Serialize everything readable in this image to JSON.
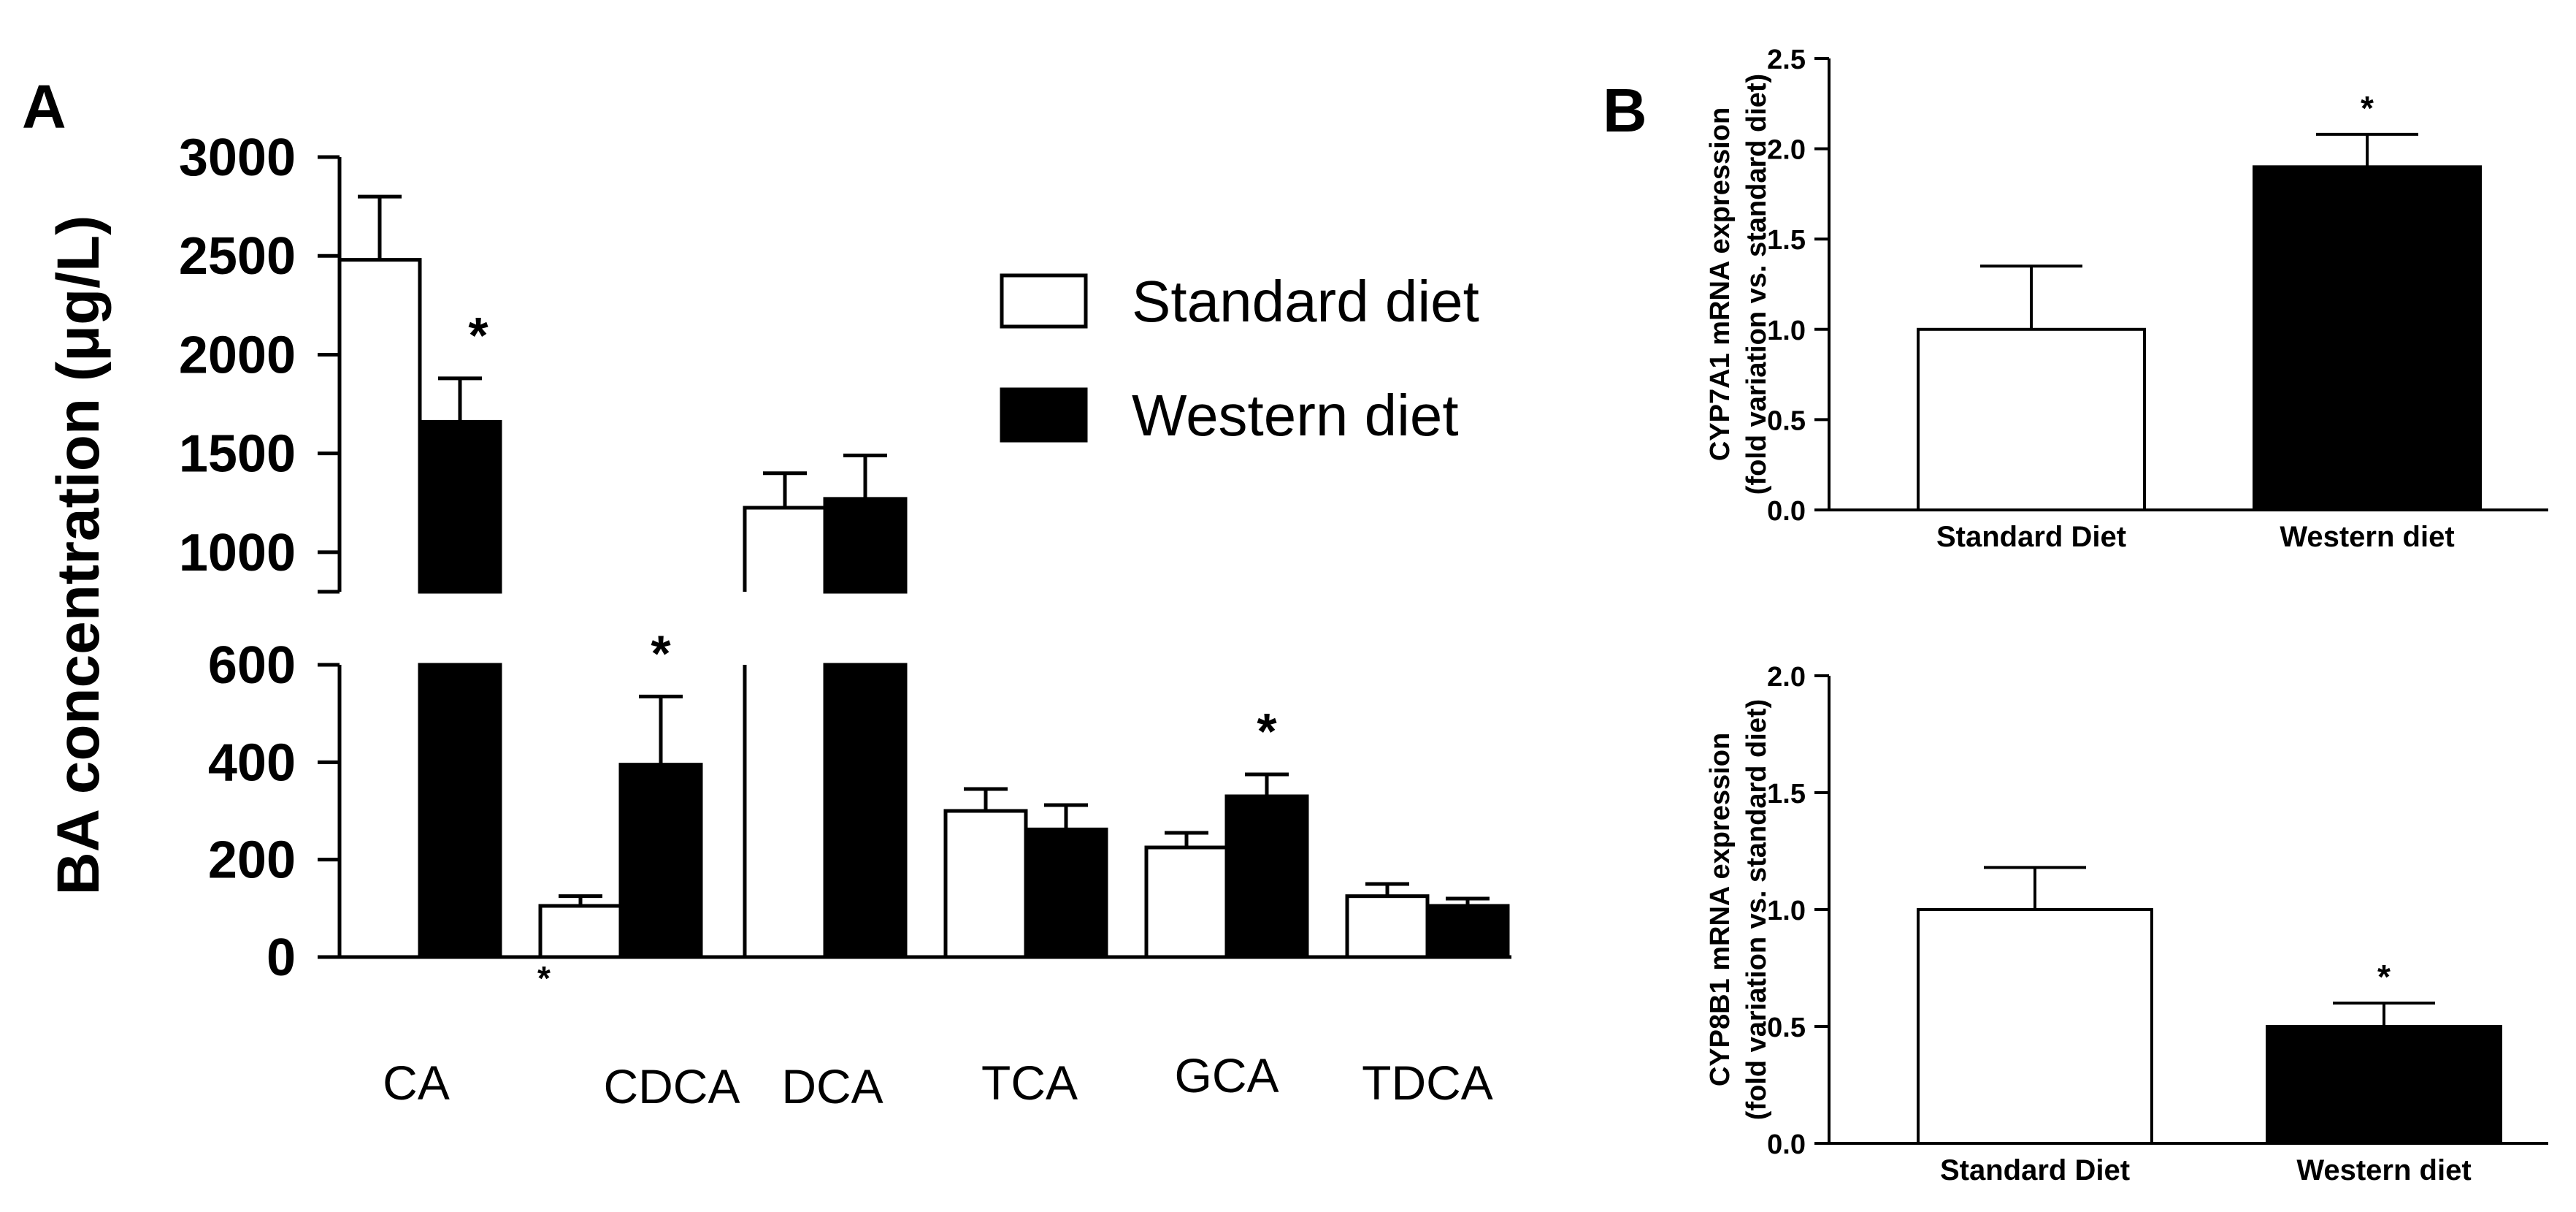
{
  "panels": {
    "a": "A",
    "b": "B"
  },
  "colors": {
    "standard": "#ffffff",
    "western": "#000000",
    "stroke": "#000000"
  },
  "chart_data": [
    {
      "id": "A",
      "type": "bar",
      "title": "",
      "xlabel": "",
      "ylabel": "BA concentration (μg/L)",
      "axis_break": {
        "lower": [
          0,
          600
        ],
        "upper": [
          800,
          3000
        ]
      },
      "lower_ticks": [
        "0",
        "200",
        "400",
        "600"
      ],
      "upper_ticks": [
        "1000",
        "1500",
        "2000",
        "2500",
        "3000"
      ],
      "categories": [
        "CA",
        "CDCA",
        "DCA",
        "TCA",
        "GCA",
        "TDCA"
      ],
      "series": [
        {
          "name": "Standard diet",
          "values": [
            2480,
            105,
            1225,
            300,
            225,
            125
          ],
          "errors": [
            320,
            20,
            175,
            45,
            30,
            25
          ]
        },
        {
          "name": "Western diet",
          "values": [
            1660,
            395,
            1270,
            262,
            330,
            105
          ],
          "errors": [
            220,
            140,
            220,
            50,
            45,
            15
          ]
        }
      ],
      "significance": [
        {
          "category": "CA",
          "series": "Western diet",
          "label": "*"
        },
        {
          "category": "CDCA",
          "series": "Western diet",
          "label": "*"
        },
        {
          "category": "GCA",
          "series": "Western diet",
          "label": "*"
        }
      ],
      "note_mark": "*",
      "legend": [
        "Standard diet",
        "Western diet"
      ]
    },
    {
      "id": "B-top",
      "type": "bar",
      "title": "",
      "xlabel": "",
      "ylabel_lines": [
        "CYP7A1 mRNA expression",
        "(fold variation vs. standard diet)"
      ],
      "ylim": [
        0,
        2.5
      ],
      "ticks": [
        "0.0",
        "0.5",
        "1.0",
        "1.5",
        "2.0",
        "2.5"
      ],
      "categories": [
        "Standard Diet",
        "Western diet"
      ],
      "values": [
        1.0,
        1.9
      ],
      "errors": [
        0.35,
        0.18
      ],
      "significance": [
        {
          "category": "Western diet",
          "label": "*"
        }
      ]
    },
    {
      "id": "B-bottom",
      "type": "bar",
      "title": "",
      "xlabel": "",
      "ylabel_lines": [
        "CYP8B1 mRNA expression",
        "(fold variation vs. standard diet)"
      ],
      "ylim": [
        0,
        2.0
      ],
      "ticks": [
        "0.0",
        "0.5",
        "1.0",
        "1.5",
        "2.0"
      ],
      "categories": [
        "Standard Diet",
        "Western diet"
      ],
      "values": [
        1.0,
        0.5
      ],
      "errors": [
        0.18,
        0.1
      ],
      "significance": [
        {
          "category": "Western diet",
          "label": "*"
        }
      ]
    }
  ]
}
